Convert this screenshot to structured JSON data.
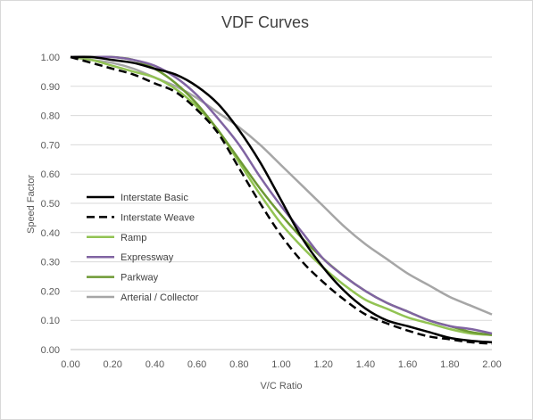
{
  "chart_data": {
    "type": "line",
    "title": "VDF Curves",
    "xlabel": "V/C Ratio",
    "ylabel": "Speed Factor",
    "xlim": [
      0,
      2
    ],
    "ylim": [
      0,
      1
    ],
    "x_ticks": [
      "0.00",
      "0.20",
      "0.40",
      "0.60",
      "0.80",
      "1.00",
      "1.20",
      "1.40",
      "1.60",
      "1.80",
      "2.00"
    ],
    "y_ticks": [
      "0.00",
      "0.10",
      "0.20",
      "0.30",
      "0.40",
      "0.50",
      "0.60",
      "0.70",
      "0.80",
      "0.90",
      "1.00"
    ],
    "grid": "horizontal",
    "legend_position": "left-middle",
    "x": [
      0.0,
      0.1,
      0.2,
      0.3,
      0.4,
      0.5,
      0.6,
      0.7,
      0.8,
      0.9,
      1.0,
      1.1,
      1.2,
      1.3,
      1.4,
      1.5,
      1.6,
      1.7,
      1.8,
      1.9,
      2.0
    ],
    "series": [
      {
        "name": "Interstate Basic",
        "color": "#000000",
        "dash": "solid",
        "values": [
          1.0,
          1.0,
          0.99,
          0.98,
          0.96,
          0.94,
          0.9,
          0.84,
          0.75,
          0.64,
          0.51,
          0.38,
          0.28,
          0.2,
          0.14,
          0.1,
          0.08,
          0.06,
          0.04,
          0.03,
          0.025
        ]
      },
      {
        "name": "Interstate Weave",
        "color": "#000000",
        "dash": "dashed",
        "values": [
          1.0,
          0.98,
          0.96,
          0.94,
          0.91,
          0.88,
          0.82,
          0.74,
          0.62,
          0.5,
          0.39,
          0.3,
          0.23,
          0.17,
          0.12,
          0.09,
          0.065,
          0.045,
          0.035,
          0.025,
          0.02
        ]
      },
      {
        "name": "Ramp",
        "color": "#92c353",
        "dash": "solid",
        "values": [
          1.0,
          0.99,
          0.97,
          0.95,
          0.93,
          0.89,
          0.83,
          0.75,
          0.64,
          0.53,
          0.43,
          0.35,
          0.28,
          0.22,
          0.17,
          0.14,
          0.11,
          0.09,
          0.07,
          0.055,
          0.05
        ]
      },
      {
        "name": "Expressway",
        "color": "#8064a2",
        "dash": "solid",
        "values": [
          1.0,
          1.0,
          1.0,
          0.99,
          0.97,
          0.93,
          0.87,
          0.79,
          0.7,
          0.59,
          0.49,
          0.4,
          0.31,
          0.25,
          0.2,
          0.16,
          0.13,
          0.1,
          0.08,
          0.07,
          0.055
        ]
      },
      {
        "name": "Parkway",
        "color": "#6e9a34",
        "dash": "solid",
        "values": [
          1.0,
          1.0,
          1.0,
          0.99,
          0.96,
          0.91,
          0.84,
          0.75,
          0.65,
          0.55,
          0.46,
          0.38,
          0.31,
          0.25,
          0.2,
          0.16,
          0.13,
          0.1,
          0.08,
          0.06,
          0.05
        ]
      },
      {
        "name": "Arterial / Collector",
        "color": "#a6a6a6",
        "dash": "solid",
        "values": [
          1.0,
          0.99,
          0.98,
          0.96,
          0.93,
          0.9,
          0.86,
          0.81,
          0.76,
          0.7,
          0.63,
          0.56,
          0.49,
          0.42,
          0.36,
          0.31,
          0.26,
          0.22,
          0.18,
          0.15,
          0.12
        ]
      }
    ]
  }
}
